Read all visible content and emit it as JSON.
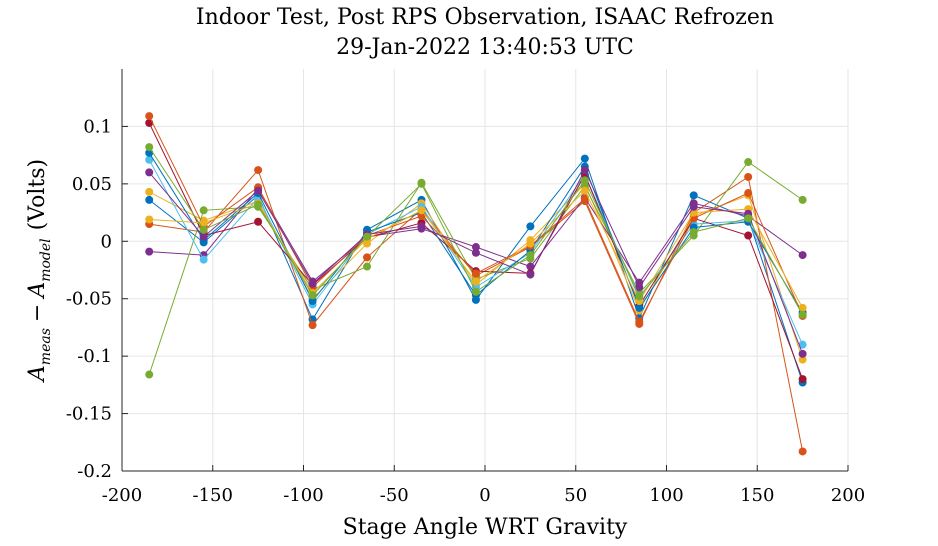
{
  "chart_data": {
    "type": "line",
    "title_line1": "Indoor Test, Post RPS Observation, ISAAC Refrozen",
    "title_line2": "29-Jan-2022 13:40:53 UTC",
    "xlabel": "Stage Angle WRT Gravity",
    "ylabel_main": "A",
    "ylabel_sub1": "meas",
    "ylabel_minus": "−",
    "ylabel_sub2": "model",
    "ylabel_units": "(Volts)",
    "xlim": [
      -200,
      200
    ],
    "ylim": [
      -0.2,
      0.15
    ],
    "xticks": [
      "-200",
      "-150",
      "-100",
      "-50",
      "0",
      "50",
      "100",
      "150",
      "200"
    ],
    "yticks": [
      "-0.2",
      "-0.15",
      "-0.1",
      "-0.05",
      "0",
      "0.05",
      "0.1"
    ],
    "grid": true,
    "x": [
      -185,
      -155,
      -125,
      -95,
      -65,
      -35,
      -5,
      25,
      55,
      85,
      115,
      145,
      175
    ],
    "series": [
      {
        "color": "#0072BD",
        "values": [
          0.036,
          -0.001,
          0.04,
          -0.068,
          0.01,
          0.036,
          -0.051,
          0.013,
          0.072,
          -0.067,
          0.04,
          0.02,
          -0.123
        ]
      },
      {
        "color": "#D95319",
        "values": [
          0.015,
          0.008,
          0.062,
          -0.073,
          -0.014,
          0.028,
          -0.03,
          -0.005,
          0.035,
          -0.072,
          0.025,
          0.056,
          -0.183
        ]
      },
      {
        "color": "#EDB120",
        "values": [
          0.043,
          0.018,
          0.035,
          -0.05,
          -0.002,
          0.033,
          -0.038,
          0.001,
          0.05,
          -0.06,
          0.022,
          0.04,
          -0.103
        ]
      },
      {
        "color": "#7E2F8E",
        "values": [
          -0.009,
          -0.012,
          0.046,
          -0.035,
          0.004,
          0.011,
          -0.005,
          -0.022,
          0.038,
          -0.036,
          0.033,
          0.022,
          -0.012
        ]
      },
      {
        "color": "#77AC30",
        "values": [
          -0.116,
          0.027,
          0.03,
          -0.042,
          -0.022,
          0.051,
          -0.033,
          -0.015,
          0.048,
          -0.045,
          0.005,
          0.069,
          0.036
        ]
      },
      {
        "color": "#4DBEEE",
        "values": [
          0.071,
          -0.016,
          0.038,
          -0.055,
          0.006,
          0.03,
          -0.04,
          -0.01,
          0.058,
          -0.05,
          0.015,
          0.018,
          -0.09
        ]
      },
      {
        "color": "#A2142F",
        "values": [
          0.103,
          0.005,
          0.017,
          -0.038,
          0.003,
          0.016,
          -0.026,
          -0.028,
          0.058,
          -0.056,
          0.02,
          0.005,
          -0.12
        ]
      },
      {
        "color": "#0072BD",
        "values": [
          0.077,
          0.001,
          0.042,
          -0.052,
          0.008,
          0.025,
          -0.047,
          -0.008,
          0.065,
          -0.058,
          0.012,
          0.017,
          -0.062
        ]
      },
      {
        "color": "#D95319",
        "values": [
          0.109,
          0.013,
          0.047,
          -0.04,
          0.005,
          0.022,
          -0.028,
          -0.004,
          0.037,
          -0.07,
          0.02,
          0.042,
          -0.065
        ]
      },
      {
        "color": "#EDB120",
        "values": [
          0.019,
          0.016,
          0.033,
          -0.045,
          0.002,
          0.027,
          -0.035,
          -0.002,
          0.044,
          -0.052,
          0.025,
          0.028,
          -0.058
        ]
      },
      {
        "color": "#7E2F8E",
        "values": [
          0.06,
          0.004,
          0.044,
          -0.037,
          0.006,
          0.013,
          -0.01,
          -0.029,
          0.062,
          -0.04,
          0.03,
          0.024,
          -0.098
        ]
      },
      {
        "color": "#77AC30",
        "values": [
          0.082,
          0.01,
          0.032,
          -0.047,
          0.004,
          0.05,
          -0.044,
          -0.012,
          0.053,
          -0.048,
          0.008,
          0.02,
          -0.064
        ]
      }
    ]
  }
}
